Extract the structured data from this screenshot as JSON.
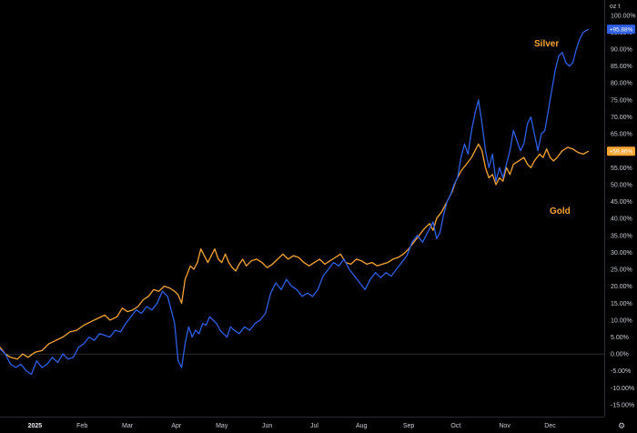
{
  "chart_data": {
    "type": "line",
    "axis_unit": "oz t",
    "y_ticks": [
      100,
      95,
      90,
      85,
      80,
      75,
      70,
      65,
      60,
      55,
      50,
      45,
      40,
      35,
      30,
      25,
      20,
      15,
      10,
      5,
      0,
      -5,
      -10,
      -15
    ],
    "y_tick_labels": [
      "100.00%",
      "95.00%",
      "90.00%",
      "85.00%",
      "80.00%",
      "75.00%",
      "70.00%",
      "65.00%",
      "60.00%",
      "55.00%",
      "50.00%",
      "45.00%",
      "40.00%",
      "35.00%",
      "30.00%",
      "25.00%",
      "20.00%",
      "15.00%",
      "10.00%",
      "5.00%",
      "0.00%",
      "-5.00%",
      "-10.00%",
      "-15.00%"
    ],
    "ylim": [
      -18.5,
      104.5
    ],
    "xlim": [
      0,
      346
    ],
    "x_ticks": [
      {
        "label": "2025",
        "x": 20,
        "year": true
      },
      {
        "label": "Feb",
        "x": 47
      },
      {
        "label": "Mar",
        "x": 73
      },
      {
        "label": "Apr",
        "x": 101
      },
      {
        "label": "May",
        "x": 127
      },
      {
        "label": "Jun",
        "x": 153
      },
      {
        "label": "Jul",
        "x": 180
      },
      {
        "label": "Aug",
        "x": 207
      },
      {
        "label": "Sep",
        "x": 234
      },
      {
        "label": "Oct",
        "x": 261
      },
      {
        "label": "Nov",
        "x": 289
      },
      {
        "label": "Dec",
        "x": 315
      }
    ],
    "grid": false,
    "zero_line": true,
    "series": [
      {
        "name": "Gold",
        "color": "#f7a535",
        "last_label": "+59.86%",
        "points": [
          [
            0,
            2
          ],
          [
            3,
            0
          ],
          [
            6,
            -1
          ],
          [
            10,
            -1.5
          ],
          [
            13,
            0
          ],
          [
            16,
            -1
          ],
          [
            20,
            0.5
          ],
          [
            24,
            1
          ],
          [
            28,
            3
          ],
          [
            32,
            4
          ],
          [
            36,
            5
          ],
          [
            40,
            6.5
          ],
          [
            44,
            7
          ],
          [
            48,
            8.5
          ],
          [
            52,
            9.5
          ],
          [
            56,
            10.5
          ],
          [
            60,
            11.5
          ],
          [
            63,
            10
          ],
          [
            67,
            11
          ],
          [
            70,
            13.5
          ],
          [
            73,
            12.5
          ],
          [
            76,
            13
          ],
          [
            79,
            14
          ],
          [
            82,
            16
          ],
          [
            85,
            17
          ],
          [
            88,
            19
          ],
          [
            91,
            18.5
          ],
          [
            94,
            20
          ],
          [
            97,
            19.5
          ],
          [
            100,
            18.5
          ],
          [
            102,
            17.5
          ],
          [
            104,
            15
          ],
          [
            106,
            22
          ],
          [
            109,
            26
          ],
          [
            111,
            25
          ],
          [
            113,
            27
          ],
          [
            115,
            31
          ],
          [
            117,
            29
          ],
          [
            119,
            27
          ],
          [
            121,
            29
          ],
          [
            123,
            31
          ],
          [
            125,
            28
          ],
          [
            127,
            27
          ],
          [
            129,
            29.5
          ],
          [
            131,
            27
          ],
          [
            133,
            25.5
          ],
          [
            135,
            24.5
          ],
          [
            137,
            26.5
          ],
          [
            139,
            28
          ],
          [
            141,
            26
          ],
          [
            144,
            27.5
          ],
          [
            147,
            28
          ],
          [
            150,
            27
          ],
          [
            153,
            25.5
          ],
          [
            156,
            26.5
          ],
          [
            159,
            28
          ],
          [
            162,
            29.5
          ],
          [
            165,
            28
          ],
          [
            168,
            29
          ],
          [
            171,
            28.5
          ],
          [
            174,
            27
          ],
          [
            177,
            26
          ],
          [
            180,
            27
          ],
          [
            183,
            28
          ],
          [
            186,
            26.5
          ],
          [
            189,
            27.5
          ],
          [
            192,
            28.5
          ],
          [
            195,
            29.5
          ],
          [
            198,
            27
          ],
          [
            201,
            26.5
          ],
          [
            204,
            28
          ],
          [
            207,
            27.5
          ],
          [
            210,
            26.5
          ],
          [
            213,
            27
          ],
          [
            216,
            26
          ],
          [
            219,
            26.5
          ],
          [
            222,
            27
          ],
          [
            225,
            28
          ],
          [
            228,
            28.5
          ],
          [
            231,
            29.5
          ],
          [
            234,
            31
          ],
          [
            237,
            33
          ],
          [
            240,
            35
          ],
          [
            243,
            37
          ],
          [
            246,
            38.5
          ],
          [
            248,
            36.5
          ],
          [
            250,
            40
          ],
          [
            253,
            42
          ],
          [
            256,
            45
          ],
          [
            259,
            48
          ],
          [
            261,
            51
          ],
          [
            264,
            54
          ],
          [
            267,
            56
          ],
          [
            270,
            58
          ],
          [
            272,
            60
          ],
          [
            274,
            62
          ],
          [
            276,
            60
          ],
          [
            278,
            55
          ],
          [
            280,
            52
          ],
          [
            282,
            53
          ],
          [
            284,
            50
          ],
          [
            286,
            52
          ],
          [
            288,
            51
          ],
          [
            290,
            55
          ],
          [
            292,
            53
          ],
          [
            294,
            56
          ],
          [
            297,
            57
          ],
          [
            300,
            58
          ],
          [
            302,
            56
          ],
          [
            304,
            55
          ],
          [
            306,
            57
          ],
          [
            309,
            59
          ],
          [
            311,
            58
          ],
          [
            313,
            60.5
          ],
          [
            315,
            58
          ],
          [
            317,
            57
          ],
          [
            319,
            58
          ],
          [
            322,
            60
          ],
          [
            325,
            61
          ],
          [
            328,
            60.5
          ],
          [
            331,
            59.5
          ],
          [
            334,
            59
          ],
          [
            337,
            59.86
          ]
        ]
      },
      {
        "name": "Silver",
        "color": "#2f5fe6",
        "last_label": "+95.88%",
        "points": [
          [
            0,
            1.5
          ],
          [
            3,
            0
          ],
          [
            6,
            -3
          ],
          [
            9,
            -4
          ],
          [
            12,
            -3
          ],
          [
            15,
            -5
          ],
          [
            18,
            -6
          ],
          [
            21,
            -2
          ],
          [
            24,
            -4
          ],
          [
            27,
            -3
          ],
          [
            30,
            -1
          ],
          [
            33,
            -2.5
          ],
          [
            36,
            0
          ],
          [
            39,
            -1.5
          ],
          [
            42,
            -1
          ],
          [
            45,
            2
          ],
          [
            48,
            3
          ],
          [
            51,
            5
          ],
          [
            54,
            4
          ],
          [
            57,
            6
          ],
          [
            60,
            5.5
          ],
          [
            63,
            5
          ],
          [
            66,
            7
          ],
          [
            69,
            6.5
          ],
          [
            72,
            9
          ],
          [
            75,
            11
          ],
          [
            78,
            13
          ],
          [
            81,
            12
          ],
          [
            84,
            14
          ],
          [
            87,
            13
          ],
          [
            90,
            15
          ],
          [
            93,
            18.5
          ],
          [
            96,
            17
          ],
          [
            98,
            13
          ],
          [
            100,
            9
          ],
          [
            102,
            -2
          ],
          [
            104,
            -4
          ],
          [
            106,
            3
          ],
          [
            108,
            8
          ],
          [
            110,
            5
          ],
          [
            112,
            7
          ],
          [
            114,
            6
          ],
          [
            116,
            9
          ],
          [
            118,
            8.5
          ],
          [
            120,
            11
          ],
          [
            122,
            10
          ],
          [
            124,
            9
          ],
          [
            126,
            7
          ],
          [
            128,
            6
          ],
          [
            130,
            5
          ],
          [
            132,
            8
          ],
          [
            134,
            7
          ],
          [
            137,
            6
          ],
          [
            140,
            8
          ],
          [
            143,
            7
          ],
          [
            146,
            9
          ],
          [
            149,
            10
          ],
          [
            152,
            12
          ],
          [
            155,
            18
          ],
          [
            158,
            21
          ],
          [
            161,
            19
          ],
          [
            164,
            22
          ],
          [
            167,
            20
          ],
          [
            170,
            19
          ],
          [
            173,
            17
          ],
          [
            176,
            18
          ],
          [
            179,
            17
          ],
          [
            182,
            19
          ],
          [
            185,
            23
          ],
          [
            188,
            25
          ],
          [
            191,
            27
          ],
          [
            194,
            26
          ],
          [
            197,
            28
          ],
          [
            200,
            25
          ],
          [
            203,
            23
          ],
          [
            206,
            21
          ],
          [
            209,
            19
          ],
          [
            212,
            22
          ],
          [
            215,
            24
          ],
          [
            218,
            22.5
          ],
          [
            221,
            24
          ],
          [
            224,
            23
          ],
          [
            227,
            25
          ],
          [
            230,
            27
          ],
          [
            233,
            29
          ],
          [
            236,
            33
          ],
          [
            239,
            35
          ],
          [
            242,
            33
          ],
          [
            245,
            36
          ],
          [
            248,
            39
          ],
          [
            250,
            34
          ],
          [
            252,
            36
          ],
          [
            254,
            41
          ],
          [
            256,
            45
          ],
          [
            258,
            47
          ],
          [
            260,
            50
          ],
          [
            262,
            52
          ],
          [
            264,
            58
          ],
          [
            266,
            62
          ],
          [
            268,
            59
          ],
          [
            270,
            66
          ],
          [
            272,
            71
          ],
          [
            274,
            75
          ],
          [
            276,
            68
          ],
          [
            278,
            60
          ],
          [
            280,
            55
          ],
          [
            282,
            59
          ],
          [
            284,
            51
          ],
          [
            286,
            55
          ],
          [
            288,
            52
          ],
          [
            290,
            56
          ],
          [
            292,
            60
          ],
          [
            294,
            66
          ],
          [
            296,
            63
          ],
          [
            298,
            60
          ],
          [
            300,
            62
          ],
          [
            302,
            68
          ],
          [
            304,
            70
          ],
          [
            306,
            65
          ],
          [
            308,
            60
          ],
          [
            310,
            65
          ],
          [
            312,
            66
          ],
          [
            314,
            72
          ],
          [
            316,
            78
          ],
          [
            318,
            84
          ],
          [
            320,
            88
          ],
          [
            322,
            89
          ],
          [
            324,
            86
          ],
          [
            326,
            85
          ],
          [
            328,
            86
          ],
          [
            330,
            90
          ],
          [
            332,
            93
          ],
          [
            334,
            95
          ],
          [
            337,
            95.88
          ]
        ]
      }
    ],
    "annotations": [
      {
        "text": "Silver",
        "color": "#f7a535"
      },
      {
        "text": "Gold",
        "color": "#f7a535"
      }
    ]
  },
  "icons": {
    "settings": "gear-icon"
  }
}
